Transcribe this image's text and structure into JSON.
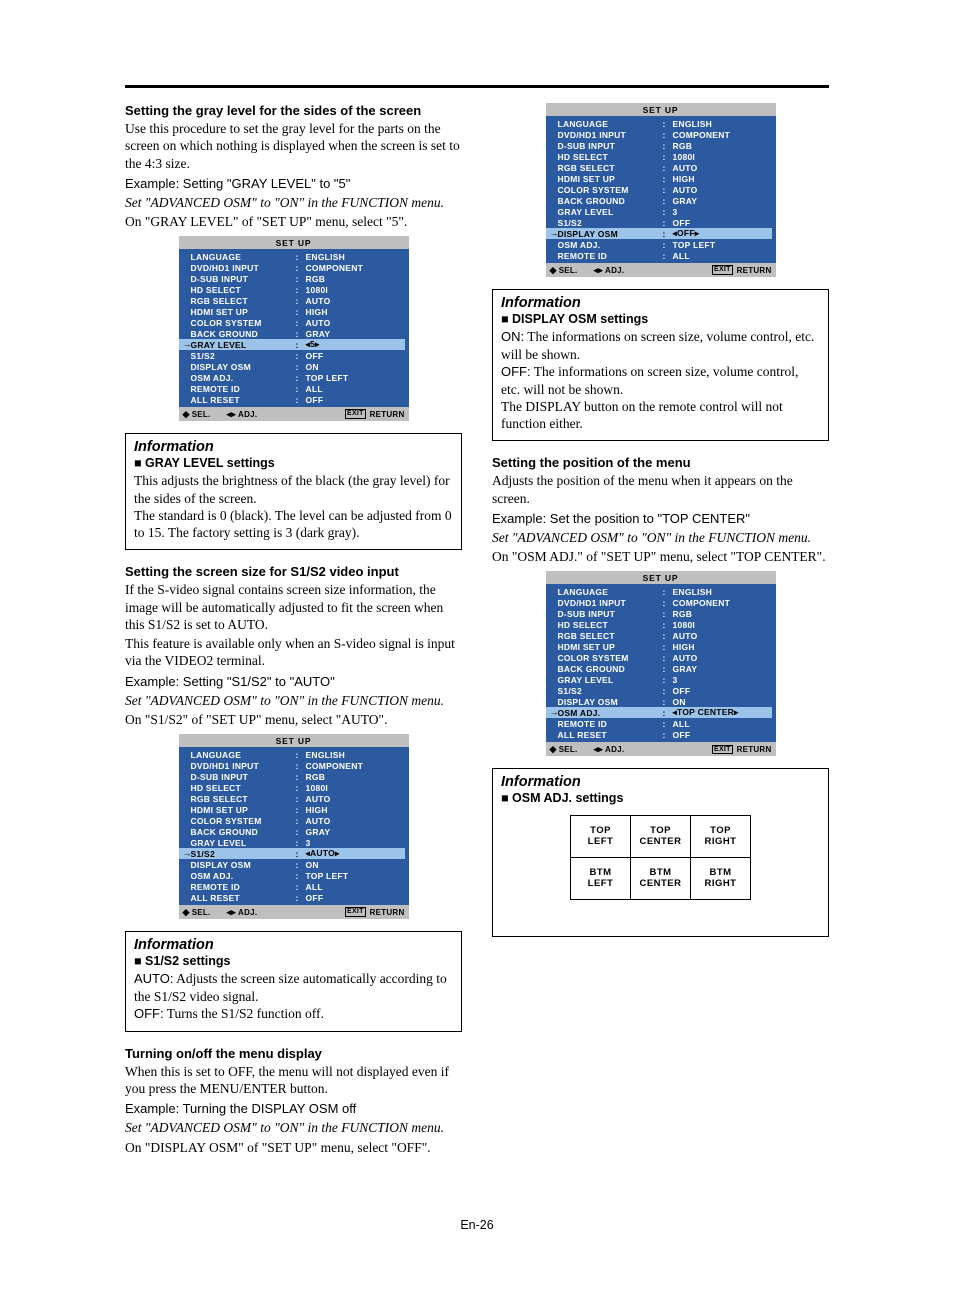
{
  "page_number": "En-26",
  "menus": {
    "common_labels": [
      "LANGUAGE",
      "DVD/HD1 INPUT",
      "D-SUB INPUT",
      "HD SELECT",
      "RGB SELECT",
      "HDMI SET UP",
      "COLOR SYSTEM",
      "BACK GROUND",
      "GRAY LEVEL",
      "S1/S2",
      "DISPLAY OSM",
      "OSM ADJ.",
      "REMOTE ID",
      "ALL RESET"
    ],
    "title": "SET UP",
    "footer": {
      "sel": "SEL.",
      "adj": "ADJ.",
      "exit": "EXIT",
      "return": "RETURN"
    },
    "m1": {
      "selected": "GRAY LEVEL",
      "values": [
        "ENGLISH",
        "COMPONENT",
        "RGB",
        "1080I",
        "AUTO",
        "HIGH",
        "AUTO",
        "GRAY",
        "◂5▸",
        "OFF",
        "ON",
        "TOP LEFT",
        "ALL",
        "OFF"
      ]
    },
    "m2": {
      "selected": "S1/S2",
      "values": [
        "ENGLISH",
        "COMPONENT",
        "RGB",
        "1080I",
        "AUTO",
        "HIGH",
        "AUTO",
        "GRAY",
        "3",
        "◂AUTO▸",
        "ON",
        "TOP LEFT",
        "ALL",
        "OFF"
      ]
    },
    "m3": {
      "selected": "DISPLAY OSM",
      "short": true,
      "labels": [
        "LANGUAGE",
        "DVD/HD1 INPUT",
        "D-SUB INPUT",
        "HD SELECT",
        "RGB SELECT",
        "HDMI SET UP",
        "COLOR SYSTEM",
        "BACK GROUND",
        "GRAY LEVEL",
        "S1/S2",
        "DISPLAY OSM",
        "OSM ADJ.",
        "REMOTE ID"
      ],
      "values": [
        "ENGLISH",
        "COMPONENT",
        "RGB",
        "1080I",
        "AUTO",
        "HIGH",
        "AUTO",
        "GRAY",
        "3",
        "OFF",
        "◂OFF▸",
        "TOP LEFT",
        "ALL"
      ]
    },
    "m4": {
      "selected": "OSM ADJ.",
      "labels": [
        "LANGUAGE",
        "DVD/HD1 INPUT",
        "D-SUB INPUT",
        "HD SELECT",
        "RGB SELECT",
        "HDMI SET UP",
        "COLOR SYSTEM",
        "BACK GROUND",
        "GRAY LEVEL",
        "S1/S2",
        "DISPLAY OSM",
        "OSM ADJ.",
        "REMOTE ID",
        "ALL RESET"
      ],
      "values": [
        "ENGLISH",
        "COMPONENT",
        "RGB",
        "1080I",
        "AUTO",
        "HIGH",
        "AUTO",
        "GRAY",
        "3",
        "OFF",
        "ON",
        "◂TOP CENTER▸",
        "ALL",
        "OFF"
      ]
    }
  },
  "left": {
    "s1": {
      "heading": "Setting the gray level for the sides of the screen",
      "p1": "Use this procedure to set the gray level for the parts on the screen on which nothing is displayed when the screen is set to the 4:3 size.",
      "ex": "Example: Setting \"GRAY LEVEL\" to \"5\"",
      "it": "Set \"ADVANCED OSM\" to \"ON\" in the FUNCTION menu.",
      "p2": "On \"GRAY LEVEL\" of \"SET UP\" menu, select \"5\"."
    },
    "info1": {
      "title": "Information",
      "sub": "GRAY LEVEL settings",
      "body": "This adjusts the brightness of the black (the gray level) for the sides of the screen.\nThe standard is 0 (black). The level can be adjusted from 0 to 15. The factory setting is 3 (dark gray)."
    },
    "s2": {
      "heading": "Setting the screen size for S1/S2 video input",
      "p1": "If the S-video signal contains screen size information, the image will be automatically adjusted to fit the screen when this S1/S2 is set to AUTO.",
      "p2": "This feature is available only when an S-video signal is input via the VIDEO2 terminal.",
      "ex": "Example: Setting \"S1/S2\" to \"AUTO\"",
      "it": "Set \"ADVANCED OSM\" to \"ON\" in the FUNCTION menu.",
      "p3": "On \"S1/S2\" of \"SET UP\" menu, select \"AUTO\"."
    },
    "info2": {
      "title": "Information",
      "sub": "S1/S2 settings",
      "auto_term": "AUTO:",
      "auto_text": " Adjusts the screen size automatically according to the S1/S2 video signal.",
      "off_term": "OFF:",
      "off_text": " Turns the S1/S2 function off."
    },
    "s3": {
      "heading": "Turning on/off the menu display",
      "p1": "When this is set to OFF, the menu will not displayed even if you press the MENU/ENTER button.",
      "ex": "Example: Turning the DISPLAY OSM off",
      "it": "Set \"ADVANCED OSM\" to \"ON\" in the FUNCTION menu.",
      "p2": "On \"DISPLAY OSM\" of \"SET UP\" menu, select \"OFF\"."
    }
  },
  "right": {
    "info3": {
      "title": "Information",
      "sub": "DISPLAY OSM settings",
      "on_term": "ON:",
      "on_text": " The informations on screen size, volume control, etc. will be shown.",
      "off_term": "OFF:",
      "off_text": " The informations on screen size, volume control, etc. will not be shown.",
      "tail": "The DISPLAY button on the remote control will not function either."
    },
    "s4": {
      "heading": "Setting the position of the menu",
      "p1": "Adjusts the position of the menu when it appears on the screen.",
      "ex": "Example: Set the position to \"TOP CENTER\"",
      "it": "Set \"ADVANCED OSM\" to \"ON\" in the FUNCTION menu.",
      "p2": "On \"OSM ADJ.\" of \"SET UP\" menu, select \"TOP CENTER\"."
    },
    "info4": {
      "title": "Information",
      "sub": "OSM ADJ. settings",
      "grid": [
        [
          "TOP LEFT",
          "TOP CENTER",
          "TOP RIGHT"
        ],
        [
          "BTM LEFT",
          "BTM CENTER",
          "BTM RIGHT"
        ]
      ]
    }
  }
}
